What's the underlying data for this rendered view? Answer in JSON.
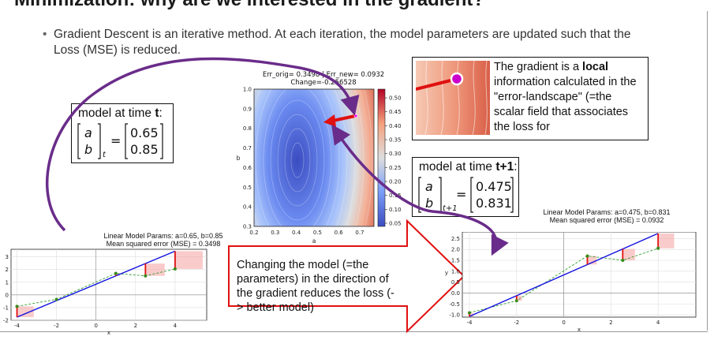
{
  "banner": {
    "title_fragment": "Minimization: why are we interested in the gradient?"
  },
  "bullet": {
    "text": "Gradient Descent is an iterative method. At each iteration, the model parameters are updated such that the Loss (MSE) is reduced."
  },
  "model_t": {
    "title_prefix": "model at time ",
    "title_bold": "t",
    "title_suffix": ":",
    "var_a": "a",
    "var_b": "b",
    "subscript": "t",
    "equals": "=",
    "value_a": "0.65",
    "value_b": "0.85"
  },
  "model_t1": {
    "title_prefix": "model at time ",
    "title_bold": "t+1",
    "title_suffix": ":",
    "var_a": "a",
    "var_b": "b",
    "subscript": "t+1",
    "equals": "=",
    "value_a": "0.475",
    "value_b": "0.831"
  },
  "gradient_note": {
    "text_before": "The gradient is a ",
    "bold": "local",
    "text_after": " information calculated in the \"error-landscape\" (=the scalar field that associates the loss for"
  },
  "change_note": {
    "text": "Changing the model (=the parameters) in the direction of the gradient reduces the loss (-> better model)"
  },
  "contour_plot": {
    "title_line1": "Err_orig= 0.3498 | Err_new= 0.0932",
    "title_line2": "Change=-0.256528",
    "xlabel": "a",
    "ylabel": "b",
    "x_ticks": [
      "0.2",
      "0.3",
      "0.4",
      "0.5",
      "0.6",
      "0.7"
    ],
    "y_ticks": [
      "0.3",
      "0.4",
      "0.5",
      "0.6",
      "0.7",
      "0.8",
      "0.9",
      "1.0"
    ],
    "colorbar_ticks": [
      "0.50",
      "0.45",
      "0.40",
      "0.35",
      "0.30",
      "0.25",
      "0.20",
      "0.15",
      "0.10",
      "0.05"
    ],
    "colors": {
      "low": "#3b4cc0",
      "mid": "#dddddd",
      "high": "#b40426",
      "arrow": "#e01010"
    }
  },
  "chart_data": [
    {
      "type": "scatter",
      "title": "Linear Model Params: a=0.65, b=0.85",
      "subtitle": "Mean squared error (MSE) = 0.3498",
      "xlabel": "x",
      "ylabel": "",
      "xlim": [
        -4.3,
        5.6
      ],
      "ylim": [
        -2,
        3.6
      ],
      "x_ticks": [
        "-4",
        "-2",
        "0",
        "2",
        "4"
      ],
      "y_ticks": [
        "-2",
        "-1",
        "0",
        "1",
        "2",
        "3"
      ],
      "points": {
        "x": [
          -4,
          -2,
          1,
          2.5,
          4
        ],
        "y": [
          -0.9,
          -0.35,
          1.7,
          1.5,
          2.05
        ]
      },
      "line": {
        "slope": 0.65,
        "intercept": 0.85
      },
      "grid": true
    },
    {
      "type": "scatter",
      "title": "Linear Model Params: a=0.475, b=0.831",
      "subtitle": "Mean squared error (MSE) = 0.0932",
      "xlabel": "x",
      "ylabel": "y",
      "xlim": [
        -4.3,
        5.6
      ],
      "ylim": [
        -1.1,
        2.8
      ],
      "x_ticks": [
        "-4",
        "-2",
        "0",
        "2",
        "4"
      ],
      "y_ticks": [
        "-1.0",
        "-0.5",
        "0.0",
        "0.5",
        "1.0",
        "1.5",
        "2.0",
        "2.5"
      ],
      "points": {
        "x": [
          -4,
          -2,
          1,
          2.5,
          4
        ],
        "y": [
          -0.9,
          -0.35,
          1.7,
          1.5,
          2.05
        ]
      },
      "line": {
        "slope": 0.475,
        "intercept": 0.831
      },
      "grid": true
    }
  ]
}
